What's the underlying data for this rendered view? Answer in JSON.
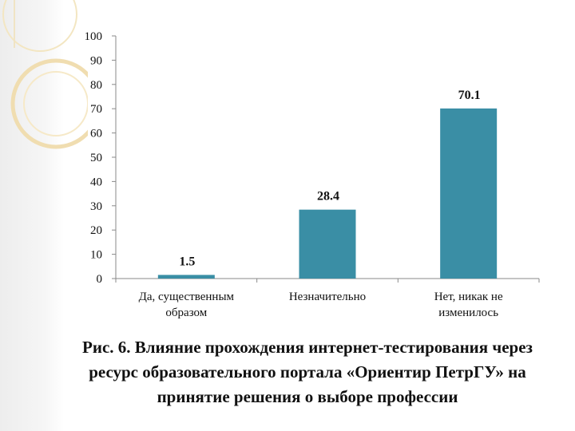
{
  "colors": {
    "bar": "#3a8ea5",
    "axis": "#8a8a8a",
    "grid": "#e2e2e2",
    "text": "#111111",
    "deco": "#f3e3b5"
  },
  "icons": {
    "slide_decoration": "gold-rings-decoration"
  },
  "chart_data": {
    "type": "bar",
    "categories": [
      [
        "Да, существенным",
        "образом"
      ],
      [
        "Незначительно"
      ],
      [
        "Нет, никак не",
        "изменилось"
      ]
    ],
    "values": [
      1.5,
      28.4,
      70.1
    ],
    "data_labels": [
      "1.5",
      "28.4",
      "70.1"
    ],
    "yticks": [
      "0",
      "10",
      "20",
      "30",
      "40",
      "50",
      "60",
      "70",
      "80",
      "90",
      "100"
    ],
    "ylim": [
      0,
      100
    ],
    "grid": false,
    "legend": "none",
    "title": "",
    "xlabel": "",
    "ylabel": ""
  },
  "caption": "Рис. 6. Влияние прохождения интернет-тестирования через ресурс образовательного портала «Ориентир ПетрГУ» на принятие решения о выборе профессии"
}
